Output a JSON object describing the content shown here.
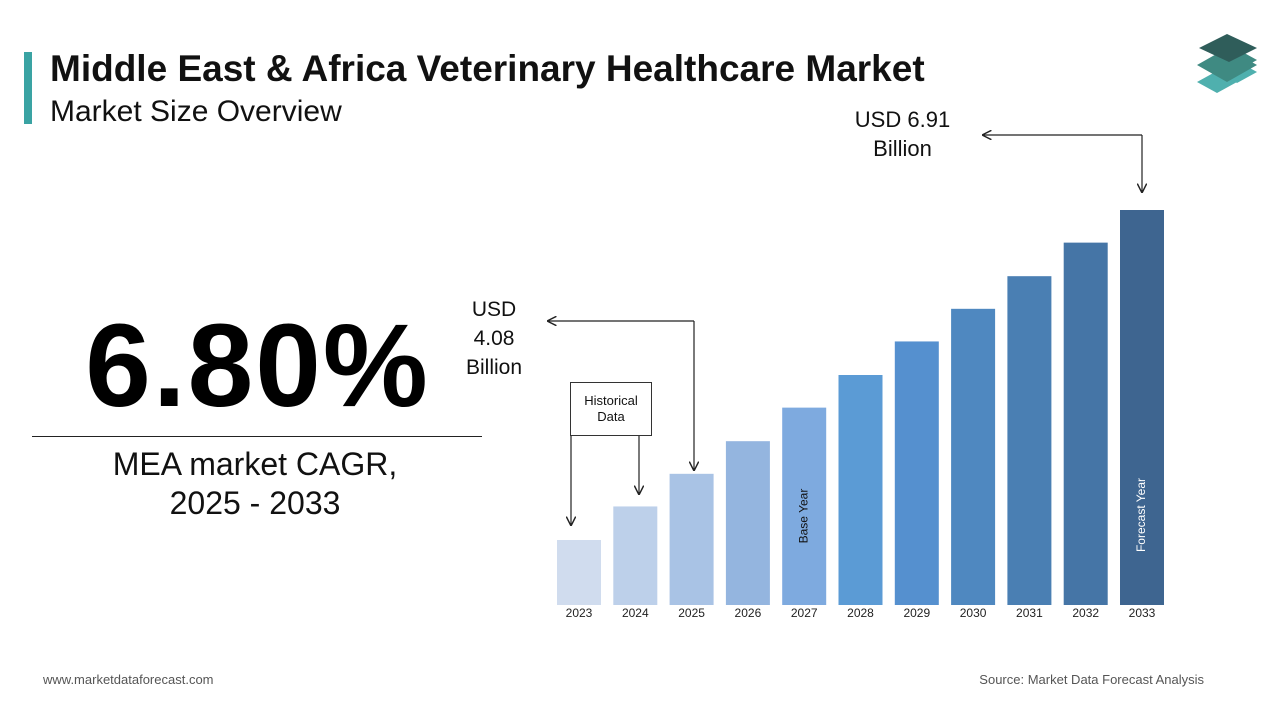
{
  "header": {
    "title": "Middle East & Africa Veterinary Healthcare Market",
    "subtitle": "Market Size Overview"
  },
  "headline": {
    "text": "6.80%",
    "caption_lines": [
      "MEA market CAGR,",
      "2025 - 2033"
    ]
  },
  "chart_data": {
    "type": "bar",
    "categories": [
      "2023",
      "2024",
      "2025",
      "2026",
      "2027",
      "2028",
      "2029",
      "2030",
      "2031",
      "2032",
      "2033"
    ],
    "values": [
      3.37,
      3.73,
      4.08,
      4.43,
      4.79,
      5.14,
      5.5,
      5.85,
      6.2,
      6.56,
      6.91
    ],
    "value_labels": [
      null,
      null,
      "USD 4.08 Billion",
      null,
      null,
      null,
      null,
      null,
      null,
      null,
      "USD 6.91 Billion"
    ],
    "colors": [
      "#d0dcee",
      "#bdd0ea",
      "#a9c3e5",
      "#94b5df",
      "#7eaadf",
      "#5b9bd5",
      "#5590cf",
      "#4f88c0",
      "#4a7fb3",
      "#4575a6",
      "#3e6590"
    ],
    "historical_label": "Historical Data",
    "base_year_label": "Base Year",
    "forecast_year_label": "Forecast Year"
  },
  "footer": {
    "website": "www.marketdataforecast.com",
    "source": "Source: Market Data Forecast Analysis"
  }
}
